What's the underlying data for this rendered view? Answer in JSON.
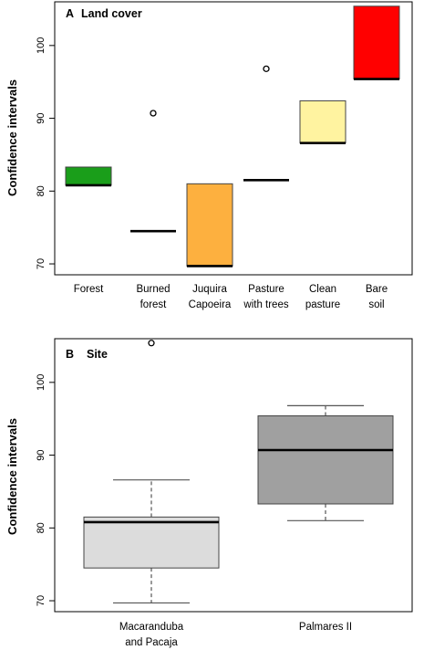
{
  "chart_data": [
    {
      "type": "box",
      "panel_letter": "A",
      "title": "Land cover",
      "ylabel": "Confidence intervals",
      "ylim": [
        68.5,
        106
      ],
      "yticks": [
        70,
        80,
        90,
        100
      ],
      "grid": false,
      "categories": [
        [
          "Forest"
        ],
        [
          "Burned",
          "forest"
        ],
        [
          "Juquira",
          "Capoeira"
        ],
        [
          "Pasture",
          "with trees"
        ],
        [
          "Clean",
          "pasture"
        ],
        [
          "Bare",
          "soil"
        ]
      ],
      "boxes": [
        {
          "q1": 80.8,
          "median": 80.8,
          "q3": 83.3,
          "whisker_low": null,
          "whisker_high": null,
          "outliers": [],
          "color": "#1a9e1a"
        },
        {
          "q1": 74.5,
          "median": 74.5,
          "q3": 74.5,
          "whisker_low": null,
          "whisker_high": null,
          "outliers": [
            90.7
          ],
          "color": "#ffffff"
        },
        {
          "q1": 69.7,
          "median": 69.7,
          "q3": 81.0,
          "whisker_low": null,
          "whisker_high": null,
          "outliers": [],
          "color": "#fdb03f"
        },
        {
          "q1": 81.5,
          "median": 81.5,
          "q3": 81.5,
          "whisker_low": null,
          "whisker_high": null,
          "outliers": [
            96.8
          ],
          "color": "#ffffff"
        },
        {
          "q1": 86.6,
          "median": 86.6,
          "q3": 92.4,
          "whisker_low": null,
          "whisker_high": null,
          "outliers": [],
          "color": "#fff3a0"
        },
        {
          "q1": 95.4,
          "median": 95.4,
          "q3": 105.4,
          "whisker_low": null,
          "whisker_high": null,
          "outliers": [],
          "color": "#ff0000"
        }
      ]
    },
    {
      "type": "box",
      "panel_letter": "B",
      "title": "Site",
      "ylabel": "Confidence intervals",
      "ylim": [
        68.5,
        106
      ],
      "yticks": [
        70,
        80,
        90,
        100
      ],
      "grid": false,
      "categories": [
        [
          "Macaranduba",
          "and Pacaja"
        ],
        [
          "Palmares II"
        ]
      ],
      "boxes": [
        {
          "q1": 74.5,
          "median": 80.8,
          "q3": 81.5,
          "whisker_low": 69.7,
          "whisker_high": 86.6,
          "outliers": [
            105.4
          ],
          "color": "#dcdcdc"
        },
        {
          "q1": 83.3,
          "median": 90.7,
          "q3": 95.4,
          "whisker_low": 81.0,
          "whisker_high": 96.8,
          "outliers": [],
          "color": "#a0a0a0"
        }
      ]
    }
  ]
}
